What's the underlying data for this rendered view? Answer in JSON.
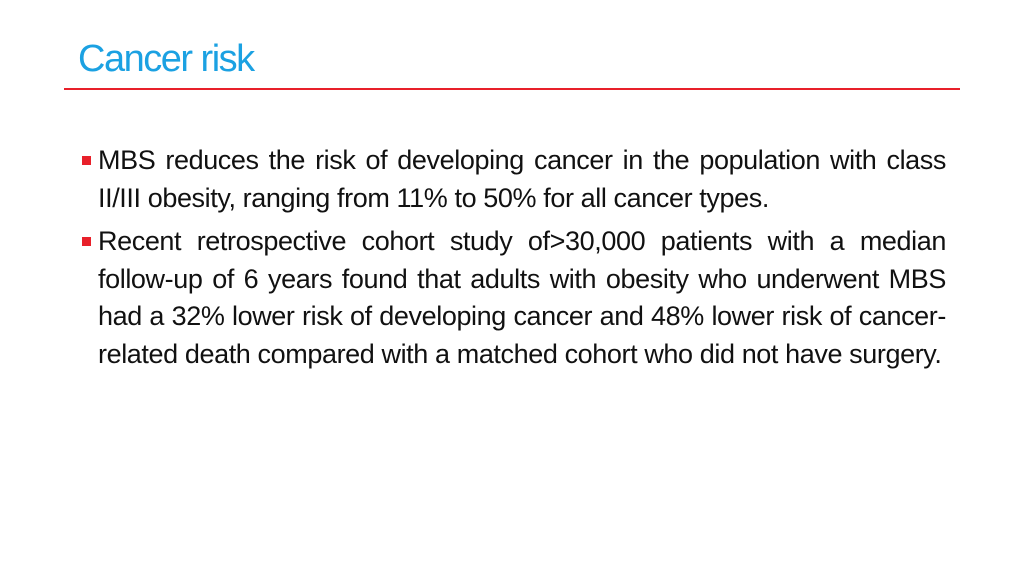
{
  "slide": {
    "title": "Cancer risk",
    "title_color": "#1BA1E2",
    "rule_color": "#E8202A",
    "bullet_color": "#E8202A",
    "bullets": [
      {
        "text": "MBS reduces the risk of developing cancer in the population with class II/III obesity, ranging from 11% to 50% for all cancer types."
      },
      {
        "text": "Recent retrospective cohort study of>30,000 patients with a median follow-up of 6 years found that adults with obesity who underwent MBS had a 32% lower risk of developing cancer and 48% lower risk of cancer-related death compared with a matched cohort who did not have surgery."
      }
    ]
  }
}
